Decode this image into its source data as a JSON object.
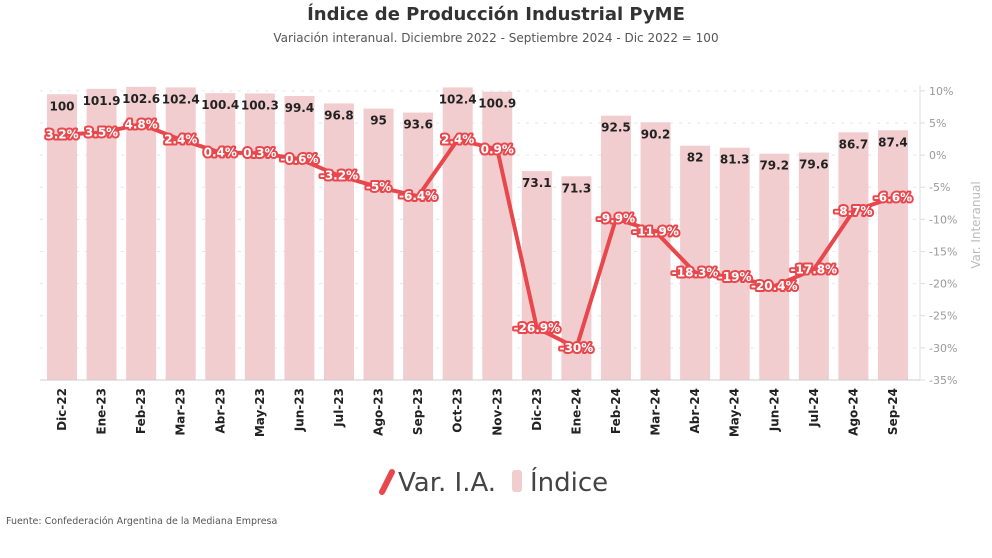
{
  "chart_data": {
    "type": "bar+line",
    "title": "Índice de Producción Industrial PyME",
    "subtitle": "Variación interanual. Diciembre 2022 - Septiembre 2024 - Dic 2022 = 100",
    "categories": [
      "Dic-22",
      "Ene-23",
      "Feb-23",
      "Mar-23",
      "Abr-23",
      "May-23",
      "Jun-23",
      "Jul-23",
      "Ago-23",
      "Sep-23",
      "Oct-23",
      "Nov-23",
      "Dic-23",
      "Ene-24",
      "Feb-24",
      "Mar-24",
      "Abr-24",
      "May-24",
      "Jun-24",
      "Jul-24",
      "Ago-24",
      "Sep-24"
    ],
    "series": [
      {
        "name": "Índice",
        "type": "bar",
        "color": "#f2cdcf",
        "values": [
          100,
          101.9,
          102.6,
          102.4,
          100.4,
          100.3,
          99.4,
          96.8,
          95,
          93.6,
          102.4,
          100.9,
          73.1,
          71.3,
          92.5,
          90.2,
          82,
          81.3,
          79.2,
          79.6,
          86.7,
          87.4
        ],
        "labels": [
          "100",
          "101.9",
          "102.6",
          "102.4",
          "100.4",
          "100.3",
          "99.4",
          "96.8",
          "95",
          "93.6",
          "102.4",
          "100.9",
          "73.1",
          "71.3",
          "92.5",
          "90.2",
          "82",
          "81.3",
          "79.2",
          "79.6",
          "86.7",
          "87.4"
        ]
      },
      {
        "name": "Var. I.A.",
        "type": "line",
        "color": "#e8474c",
        "values": [
          3.2,
          3.5,
          4.8,
          2.4,
          0.4,
          0.3,
          -0.6,
          -3.2,
          -5,
          -6.4,
          2.4,
          0.9,
          -26.9,
          -30,
          -9.9,
          -11.9,
          -18.3,
          -19,
          -20.4,
          -17.8,
          -8.7,
          -6.6
        ],
        "labels": [
          "3.2%",
          "3.5%",
          "4.8%",
          "2.4%",
          "0.4%",
          "0.3%",
          "-0.6%",
          "-3.2%",
          "-5%",
          "-6.4%",
          "2.4%",
          "0.9%",
          "-26.9%",
          "-30%",
          "-9.9%",
          "-11.9%",
          "-18.3%",
          "-19%",
          "-20.4%",
          "-17.8%",
          "-8.7%",
          "-6.6%"
        ]
      }
    ],
    "y_right": {
      "label": "Var. Interanual",
      "ticks": [
        "10%",
        "5%",
        "0%",
        "-5%",
        "-10%",
        "-15%",
        "-20%",
        "-25%",
        "-30%",
        "-35%"
      ],
      "tick_values": [
        10,
        5,
        0,
        -5,
        -10,
        -15,
        -20,
        -25,
        -30,
        -35
      ],
      "ylim": [
        -35,
        14.8
      ]
    },
    "y_left": {
      "ylim": [
        0,
        112
      ]
    },
    "grid": true,
    "legend": {
      "position": "bottom",
      "entries": [
        "Var. I.A.",
        "Índice"
      ]
    },
    "source": "Fuente: Confederación Argentina de la Mediana Empresa"
  }
}
